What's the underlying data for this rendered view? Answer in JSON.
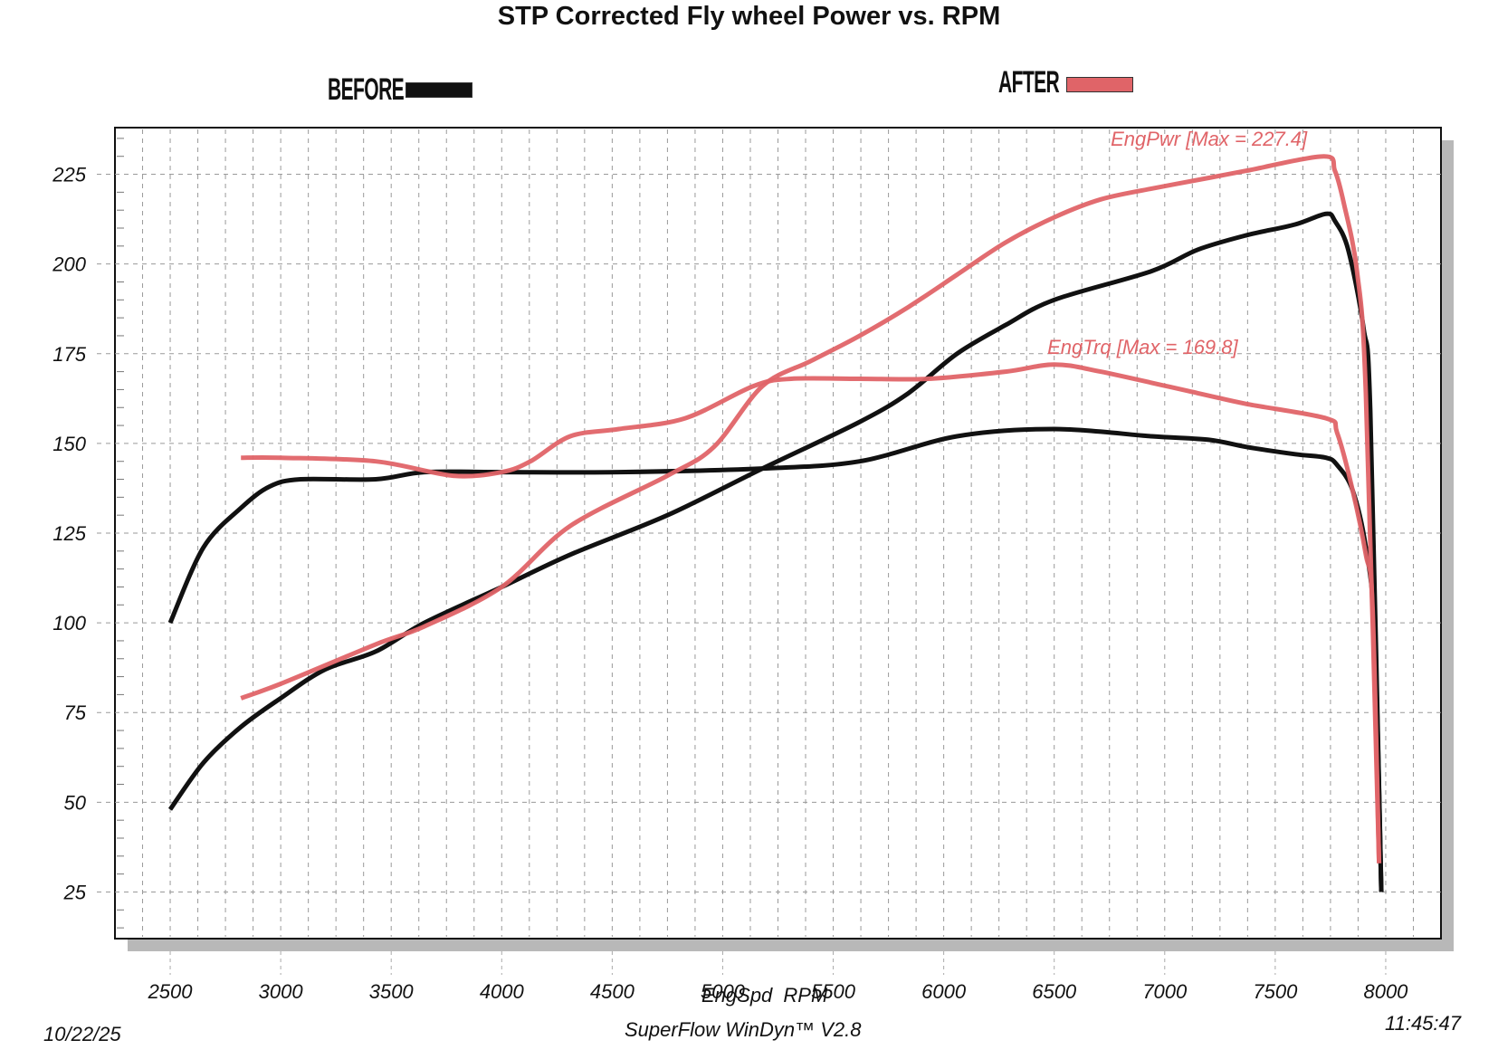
{
  "chart_data": {
    "type": "line",
    "title": "STP Corrected Fly wheel Power vs. RPM",
    "xlabel": "EngSpd  RPM",
    "ylabel": "",
    "xlim": [
      2250,
      8250
    ],
    "ylim": [
      12,
      238
    ],
    "x_ticks": [
      2500,
      3000,
      3500,
      4000,
      4500,
      5000,
      5500,
      6000,
      6500,
      7000,
      7500,
      8000
    ],
    "y_ticks": [
      25,
      50,
      75,
      100,
      125,
      150,
      175,
      200,
      225
    ],
    "grid": true,
    "legend": [
      {
        "label": "BEFORE",
        "color": "#111111",
        "position": "top-left"
      },
      {
        "label": "AFTER",
        "color": "#e06468",
        "position": "top-right"
      }
    ],
    "annotations": [
      {
        "text": "EngPwr [Max = 227.4]",
        "color": "#e06468",
        "near_x": 7200,
        "near_y": 233
      },
      {
        "text": "EngTrq [Max = 169.8]",
        "color": "#e06468",
        "near_x": 6900,
        "near_y": 175
      }
    ],
    "series": [
      {
        "name": "BEFORE EngPwr",
        "group": "BEFORE",
        "color": "#111111",
        "x": [
          2500,
          2650,
          2820,
          3000,
          3200,
          3430,
          3650,
          4000,
          4310,
          4750,
          5180,
          5620,
          5840,
          6060,
          6280,
          6500,
          6940,
          7150,
          7370,
          7590,
          7730,
          7770,
          7830,
          7900,
          7930,
          7980
        ],
        "y": [
          48,
          61,
          71,
          79,
          87,
          92,
          100,
          110,
          119,
          130,
          143,
          156,
          164,
          175,
          183,
          190,
          198,
          204,
          208,
          211,
          214,
          212,
          204,
          182,
          159,
          25
        ]
      },
      {
        "name": "BEFORE EngTrq",
        "group": "BEFORE",
        "color": "#111111",
        "x": [
          2500,
          2650,
          2820,
          2950,
          3090,
          3430,
          3650,
          4000,
          4530,
          5180,
          5620,
          6060,
          6500,
          6940,
          7200,
          7370,
          7590,
          7730,
          7780,
          7850,
          7910,
          7950,
          7980
        ],
        "y": [
          100,
          121,
          132,
          138,
          140,
          140,
          142,
          142,
          142,
          143,
          145,
          152,
          154,
          152,
          151,
          149,
          147,
          146,
          144,
          137,
          121,
          97,
          25
        ]
      },
      {
        "name": "AFTER EngPwr",
        "group": "AFTER",
        "color": "#e06468",
        "x": [
          2820,
          3000,
          3430,
          3650,
          4000,
          4310,
          4750,
          4960,
          5180,
          5400,
          5620,
          5840,
          6060,
          6280,
          6500,
          6710,
          6940,
          7200,
          7370,
          7720,
          7770,
          7810,
          7870,
          7910,
          7970
        ],
        "y": [
          79,
          83,
          94,
          99,
          110,
          127,
          141,
          149,
          166,
          173,
          180,
          188,
          197,
          206,
          213,
          218,
          221,
          224,
          226,
          230,
          226,
          217,
          198,
          164,
          33
        ]
      },
      {
        "name": "AFTER EngTrq",
        "group": "AFTER",
        "color": "#e06468",
        "x": [
          2820,
          3000,
          3430,
          3780,
          4000,
          4130,
          4310,
          4530,
          4830,
          5140,
          5310,
          5620,
          5930,
          6280,
          6500,
          6710,
          7150,
          7370,
          7730,
          7780,
          7850,
          7910,
          7940,
          7970
        ],
        "y": [
          146,
          146,
          145,
          141,
          142,
          145,
          152,
          154,
          157,
          166,
          168,
          168,
          168,
          170,
          172,
          170,
          164,
          161,
          157,
          153,
          137,
          119,
          105,
          33
        ]
      }
    ]
  },
  "footer": {
    "date": "10/22/25",
    "software": "SuperFlow WinDyn™ V2.8",
    "time": "11:45:47"
  }
}
